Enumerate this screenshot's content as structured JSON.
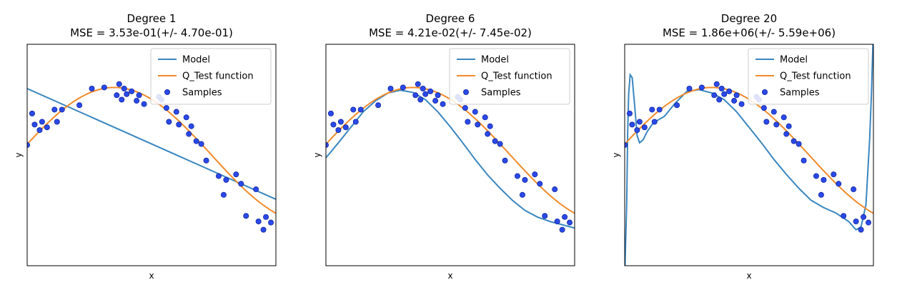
{
  "colors": {
    "model": "#3a86c0",
    "test_function": "#f28a2a",
    "samples_fill": "#2a49ea",
    "samples_edge": "#12259a",
    "frame": "#000000",
    "legend_border": "#cccccc"
  },
  "chart_data": [
    {
      "type": "line",
      "title": "Degree 1",
      "subtitle": "MSE = 3.53e-01(+/- 4.70e-01)",
      "xlabel": "x",
      "ylabel": "y",
      "xlim": [
        0,
        1
      ],
      "ylim": [
        -2,
        2
      ],
      "grid": false,
      "ticks_visible": false,
      "legend_position": "top-right",
      "legend": [
        "Model",
        "Q_Test function",
        "Samples"
      ],
      "model_degree": 1,
      "model_curve": {
        "x": [
          0,
          1
        ],
        "y": [
          1.2,
          -0.8
        ]
      }
    },
    {
      "type": "line",
      "title": "Degree 6",
      "subtitle": "MSE = 4.21e-02(+/- 7.45e-02)",
      "xlabel": "x",
      "ylabel": "y",
      "xlim": [
        0,
        1
      ],
      "ylim": [
        -2,
        2
      ],
      "grid": false,
      "ticks_visible": false,
      "legend_position": "top-right",
      "legend": [
        "Model",
        "Q_Test function",
        "Samples"
      ],
      "model_degree": 6,
      "model_curve": {
        "x": [
          0,
          0.05,
          0.1,
          0.15,
          0.2,
          0.25,
          0.3,
          0.35,
          0.4,
          0.45,
          0.5,
          0.55,
          0.6,
          0.65,
          0.7,
          0.75,
          0.8,
          0.85,
          0.9,
          0.95,
          1.0
        ],
        "y": [
          -0.05,
          0.22,
          0.5,
          0.78,
          0.98,
          1.12,
          1.17,
          1.13,
          1.0,
          0.78,
          0.51,
          0.22,
          -0.08,
          -0.36,
          -0.6,
          -0.82,
          -1.0,
          -1.12,
          -1.2,
          -1.26,
          -1.32
        ]
      }
    },
    {
      "type": "line",
      "title": "Degree 20",
      "subtitle": "MSE = 1.86e+06(+/- 5.59e+06)",
      "xlabel": "x",
      "ylabel": "y",
      "xlim": [
        0,
        1
      ],
      "ylim": [
        -2,
        2
      ],
      "grid": false,
      "ticks_visible": false,
      "legend_position": "top-right",
      "legend": [
        "Model",
        "Q_Test function",
        "Samples"
      ],
      "model_degree": 20,
      "model_curve": {
        "x": [
          0,
          0.008,
          0.012,
          0.016,
          0.022,
          0.03,
          0.04,
          0.05,
          0.06,
          0.075,
          0.09,
          0.11,
          0.13,
          0.16,
          0.2,
          0.25,
          0.3,
          0.35,
          0.4,
          0.45,
          0.5,
          0.55,
          0.6,
          0.65,
          0.7,
          0.75,
          0.8,
          0.85,
          0.9,
          0.93,
          0.95,
          0.97,
          0.985,
          0.992,
          1.0
        ],
        "y": [
          -2.2,
          -0.9,
          0.4,
          1.1,
          1.45,
          1.4,
          0.9,
          0.35,
          0.22,
          0.28,
          0.42,
          0.55,
          0.62,
          0.7,
          0.92,
          1.15,
          1.18,
          1.12,
          1.0,
          0.78,
          0.5,
          0.22,
          -0.08,
          -0.35,
          -0.6,
          -0.82,
          -0.95,
          -1.05,
          -1.2,
          -1.35,
          -1.3,
          -0.9,
          0.3,
          1.1,
          2.3
        ]
      }
    }
  ],
  "test_function": {
    "description_free": true,
    "x_range": [
      0,
      1
    ]
  },
  "samples": {
    "x": [
      0.0,
      0.02,
      0.03,
      0.05,
      0.06,
      0.08,
      0.11,
      0.12,
      0.14,
      0.21,
      0.26,
      0.31,
      0.36,
      0.37,
      0.38,
      0.39,
      0.4,
      0.42,
      0.44,
      0.45,
      0.47,
      0.53,
      0.54,
      0.56,
      0.57,
      0.6,
      0.61,
      0.64,
      0.65,
      0.66,
      0.68,
      0.7,
      0.72,
      0.77,
      0.79,
      0.8,
      0.84,
      0.86,
      0.88,
      0.92,
      0.93,
      0.95,
      0.96,
      0.98
    ],
    "y": [
      0.18,
      0.75,
      0.55,
      0.45,
      0.6,
      0.5,
      0.82,
      0.6,
      0.82,
      0.9,
      1.2,
      1.22,
      1.08,
      1.28,
      1.0,
      1.2,
      1.1,
      1.15,
      0.98,
      1.08,
      0.92,
      1.05,
      1.0,
      0.85,
      0.6,
      0.78,
      0.55,
      0.68,
      0.38,
      0.52,
      0.25,
      0.2,
      -0.1,
      -0.38,
      -0.72,
      -0.45,
      -0.35,
      -0.52,
      -1.1,
      -0.62,
      -1.2,
      -1.35,
      -1.12,
      -1.22
    ]
  }
}
